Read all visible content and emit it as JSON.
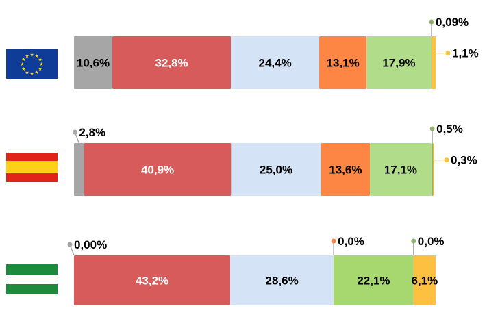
{
  "chart_data": {
    "type": "bar",
    "orientation": "horizontal-stacked-100",
    "grid": false,
    "legend": "none",
    "series_colors": [
      "#a6a6a6",
      "#d75b5a",
      "#d4e3f5",
      "#fd8644",
      "#b1dd8a",
      "#fdc040"
    ],
    "bars": [
      {
        "flag": "eu-flag",
        "segments": [
          {
            "value": 10.6,
            "label": "10,6%",
            "color": "#a6a6a6",
            "label_color": "#000000"
          },
          {
            "value": 32.8,
            "label": "32,8%",
            "color": "#d75b5a",
            "label_color": "#ffffff"
          },
          {
            "value": 24.4,
            "label": "24,4%",
            "color": "#d4e3f5",
            "label_color": "#000000"
          },
          {
            "value": 13.1,
            "label": "13,1%",
            "color": "#fd8644",
            "label_color": "#000000"
          },
          {
            "value": 17.9,
            "label": "17,9%",
            "color": "#b1dd8a",
            "label_color": "#000000"
          },
          {
            "value": 0.09,
            "label": "0,09%",
            "color": "#8fb06b",
            "callout": "above"
          },
          {
            "value": 1.1,
            "label": "1,1%",
            "color": "#fdc040",
            "callout": "right"
          }
        ]
      },
      {
        "flag": "spain-flag",
        "segments": [
          {
            "value": 2.8,
            "label": "2,8%",
            "color": "#a6a6a6",
            "callout": "above-left"
          },
          {
            "value": 40.9,
            "label": "40,9%",
            "color": "#d75b5a",
            "label_color": "#ffffff"
          },
          {
            "value": 25.0,
            "label": "25,0%",
            "color": "#d4e3f5",
            "label_color": "#000000"
          },
          {
            "value": 13.6,
            "label": "13,6%",
            "color": "#fd8644",
            "label_color": "#000000"
          },
          {
            "value": 17.1,
            "label": "17,1%",
            "color": "#b1dd8a",
            "label_color": "#000000"
          },
          {
            "value": 0.5,
            "label": "0,5%",
            "color": "#8fb06b",
            "callout": "above"
          },
          {
            "value": 0.3,
            "label": "0,3%",
            "color": "#fdc040",
            "callout": "right"
          }
        ]
      },
      {
        "flag": "andalusia-flag",
        "segments": [
          {
            "value": 0.0,
            "label": "0,00%",
            "color": "#a6a6a6",
            "callout": "above-left"
          },
          {
            "value": 43.2,
            "label": "43,2%",
            "color": "#d75b5a",
            "label_color": "#ffffff"
          },
          {
            "value": 28.6,
            "label": "28,6%",
            "color": "#d4e3f5",
            "label_color": "#000000"
          },
          {
            "value": 0.0,
            "label": "0,0%",
            "color": "#fd8644",
            "callout": "above"
          },
          {
            "value": 22.1,
            "label": "22,1%",
            "color": "#a6d86f",
            "label_color": "#000000"
          },
          {
            "value": 0.0,
            "label": "0,0%",
            "color": "#8fb06b",
            "callout": "above"
          },
          {
            "value": 6.1,
            "label": "6,1%",
            "color": "#fdc040",
            "label_color": "#000000"
          }
        ]
      }
    ]
  }
}
